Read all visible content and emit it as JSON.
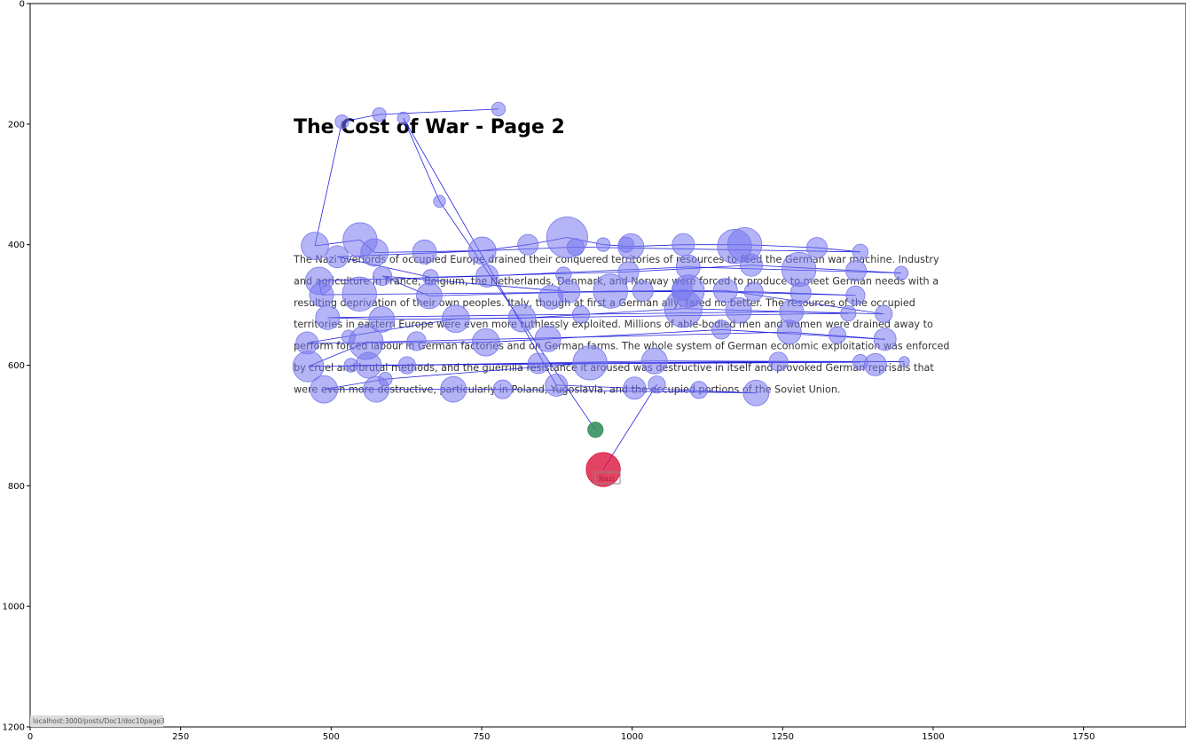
{
  "page": {
    "title": "The Cost of War - Page 2",
    "paragraph_lines": [
      "The Nazi overlords of occupied Europe drained their conquered territories of resources to feed the German war machine. Industry",
      "and agriculture in France, Belgium, the Netherlands, Denmark, and Norway were forced to produce to meet German needs with a",
      "resulting deprivation of their own peoples. Italy, though at first a German ally, fared no better. The resources of the occupied",
      "territories in eastern Europe were even more ruthlessly exploited. Millions of able-bodied men and women were drained away to",
      "perform forced labour in German factories and on German farms. The whole system of German economic exploitation was enforced",
      "by cruel and brutal methods, and the guerrilla resistance it aroused was destructive in itself and provoked German reprisals that",
      "were even more destructive, particularly in Poland, Yugoslavia, and the occupied portions of the Soviet Union."
    ],
    "status_url": "localhost:3000/posts/Doc1/doc10page3",
    "word_label": "Nazi"
  },
  "chart_data": {
    "type": "scatter",
    "title": "",
    "xlabel": "",
    "ylabel": "",
    "xlim": [
      0,
      1920
    ],
    "ylim": [
      1200,
      0
    ],
    "x_ticks": [
      0,
      250,
      500,
      750,
      1000,
      1250,
      1500,
      1750
    ],
    "y_ticks": [
      0,
      200,
      400,
      600,
      800,
      1000,
      1200
    ],
    "grid": false,
    "colors": {
      "fixation": "#7777ee",
      "path": "#2222dd",
      "start": "#2e8b57",
      "end": "#dc143c"
    },
    "fixations": [
      {
        "x": 778,
        "y": 175,
        "d": 8
      },
      {
        "x": 580,
        "y": 184,
        "d": 8
      },
      {
        "x": 620,
        "y": 190,
        "d": 7
      },
      {
        "x": 518,
        "y": 196,
        "d": 8
      },
      {
        "x": 473,
        "y": 402,
        "d": 16
      },
      {
        "x": 548,
        "y": 392,
        "d": 20
      },
      {
        "x": 510,
        "y": 420,
        "d": 13
      },
      {
        "x": 572,
        "y": 413,
        "d": 16
      },
      {
        "x": 655,
        "y": 412,
        "d": 14
      },
      {
        "x": 751,
        "y": 410,
        "d": 16
      },
      {
        "x": 827,
        "y": 400,
        "d": 12
      },
      {
        "x": 892,
        "y": 388,
        "d": 24
      },
      {
        "x": 906,
        "y": 404,
        "d": 10
      },
      {
        "x": 952,
        "y": 400,
        "d": 8
      },
      {
        "x": 990,
        "y": 400,
        "d": 9
      },
      {
        "x": 998,
        "y": 403,
        "d": 15
      },
      {
        "x": 1085,
        "y": 400,
        "d": 13
      },
      {
        "x": 1170,
        "y": 403,
        "d": 20
      },
      {
        "x": 1187,
        "y": 400,
        "d": 20
      },
      {
        "x": 1307,
        "y": 405,
        "d": 12
      },
      {
        "x": 1379,
        "y": 412,
        "d": 9
      },
      {
        "x": 1447,
        "y": 447,
        "d": 8
      },
      {
        "x": 1372,
        "y": 443,
        "d": 12
      },
      {
        "x": 1277,
        "y": 441,
        "d": 20
      },
      {
        "x": 1198,
        "y": 434,
        "d": 13
      },
      {
        "x": 1093,
        "y": 437,
        "d": 14
      },
      {
        "x": 994,
        "y": 445,
        "d": 12
      },
      {
        "x": 886,
        "y": 450,
        "d": 9
      },
      {
        "x": 759,
        "y": 452,
        "d": 13
      },
      {
        "x": 665,
        "y": 454,
        "d": 9
      },
      {
        "x": 585,
        "y": 452,
        "d": 11
      },
      {
        "x": 480,
        "y": 460,
        "d": 16
      },
      {
        "x": 484,
        "y": 483,
        "d": 14
      },
      {
        "x": 547,
        "y": 482,
        "d": 20
      },
      {
        "x": 663,
        "y": 485,
        "d": 15
      },
      {
        "x": 865,
        "y": 487,
        "d": 14
      },
      {
        "x": 895,
        "y": 478,
        "d": 13
      },
      {
        "x": 964,
        "y": 477,
        "d": 20
      },
      {
        "x": 1018,
        "y": 477,
        "d": 12
      },
      {
        "x": 1083,
        "y": 475,
        "d": 12
      },
      {
        "x": 1093,
        "y": 477,
        "d": 19
      },
      {
        "x": 1155,
        "y": 476,
        "d": 14
      },
      {
        "x": 1202,
        "y": 478,
        "d": 11
      },
      {
        "x": 1280,
        "y": 480,
        "d": 12
      },
      {
        "x": 1371,
        "y": 484,
        "d": 11
      },
      {
        "x": 1418,
        "y": 515,
        "d": 10
      },
      {
        "x": 1359,
        "y": 514,
        "d": 9
      },
      {
        "x": 1265,
        "y": 511,
        "d": 14
      },
      {
        "x": 1177,
        "y": 509,
        "d": 15
      },
      {
        "x": 1085,
        "y": 506,
        "d": 22
      },
      {
        "x": 915,
        "y": 516,
        "d": 10
      },
      {
        "x": 817,
        "y": 522,
        "d": 16
      },
      {
        "x": 707,
        "y": 523,
        "d": 16
      },
      {
        "x": 584,
        "y": 524,
        "d": 15
      },
      {
        "x": 494,
        "y": 521,
        "d": 14
      },
      {
        "x": 460,
        "y": 563,
        "d": 13
      },
      {
        "x": 529,
        "y": 553,
        "d": 8
      },
      {
        "x": 558,
        "y": 562,
        "d": 20
      },
      {
        "x": 642,
        "y": 560,
        "d": 11
      },
      {
        "x": 757,
        "y": 562,
        "d": 16
      },
      {
        "x": 860,
        "y": 556,
        "d": 15
      },
      {
        "x": 1148,
        "y": 541,
        "d": 11
      },
      {
        "x": 1261,
        "y": 545,
        "d": 14
      },
      {
        "x": 1341,
        "y": 550,
        "d": 10
      },
      {
        "x": 1420,
        "y": 557,
        "d": 13
      },
      {
        "x": 1452,
        "y": 594,
        "d": 6
      },
      {
        "x": 1404,
        "y": 599,
        "d": 13
      },
      {
        "x": 1379,
        "y": 595,
        "d": 9
      },
      {
        "x": 1243,
        "y": 594,
        "d": 11
      },
      {
        "x": 1037,
        "y": 593,
        "d": 15
      },
      {
        "x": 930,
        "y": 596,
        "d": 20
      },
      {
        "x": 844,
        "y": 597,
        "d": 12
      },
      {
        "x": 626,
        "y": 600,
        "d": 10
      },
      {
        "x": 562,
        "y": 600,
        "d": 15
      },
      {
        "x": 533,
        "y": 600,
        "d": 8
      },
      {
        "x": 462,
        "y": 602,
        "d": 18
      },
      {
        "x": 590,
        "y": 623,
        "d": 8
      },
      {
        "x": 488,
        "y": 640,
        "d": 16
      },
      {
        "x": 575,
        "y": 640,
        "d": 15
      },
      {
        "x": 703,
        "y": 640,
        "d": 15
      },
      {
        "x": 785,
        "y": 640,
        "d": 11
      },
      {
        "x": 874,
        "y": 633,
        "d": 13
      },
      {
        "x": 1004,
        "y": 638,
        "d": 13
      },
      {
        "x": 1041,
        "y": 632,
        "d": 10
      },
      {
        "x": 1111,
        "y": 641,
        "d": 10
      },
      {
        "x": 1206,
        "y": 646,
        "d": 15
      },
      {
        "x": 680,
        "y": 328,
        "d": 7
      },
      {
        "x": 939,
        "y": 707,
        "d": 9,
        "kind": "start"
      },
      {
        "x": 952,
        "y": 773,
        "d": 20,
        "kind": "end"
      }
    ],
    "path": [
      [
        778,
        175
      ],
      [
        580,
        184
      ],
      [
        518,
        196
      ],
      [
        473,
        402
      ],
      [
        548,
        392
      ],
      [
        572,
        413
      ],
      [
        751,
        410
      ],
      [
        827,
        400
      ],
      [
        892,
        388
      ],
      [
        952,
        400
      ],
      [
        998,
        403
      ],
      [
        1085,
        400
      ],
      [
        1187,
        400
      ],
      [
        1307,
        405
      ],
      [
        1379,
        412
      ],
      [
        906,
        404
      ],
      [
        510,
        420
      ],
      [
        665,
        454
      ],
      [
        994,
        445
      ],
      [
        1198,
        434
      ],
      [
        1447,
        447
      ],
      [
        1093,
        437
      ],
      [
        759,
        452
      ],
      [
        480,
        460
      ],
      [
        484,
        483
      ],
      [
        1093,
        477
      ],
      [
        1371,
        484
      ],
      [
        1202,
        478
      ],
      [
        895,
        478
      ],
      [
        585,
        452
      ],
      [
        663,
        485
      ],
      [
        964,
        477
      ],
      [
        1155,
        476
      ],
      [
        1418,
        515
      ],
      [
        1265,
        511
      ],
      [
        494,
        521
      ],
      [
        584,
        524
      ],
      [
        817,
        522
      ],
      [
        1085,
        506
      ],
      [
        1359,
        514
      ],
      [
        707,
        523
      ],
      [
        460,
        563
      ],
      [
        757,
        562
      ],
      [
        1148,
        541
      ],
      [
        1420,
        557
      ],
      [
        1261,
        545
      ],
      [
        558,
        562
      ],
      [
        462,
        602
      ],
      [
        844,
        597
      ],
      [
        1243,
        594
      ],
      [
        1452,
        594
      ],
      [
        1037,
        593
      ],
      [
        626,
        600
      ],
      [
        533,
        600
      ],
      [
        1379,
        595
      ],
      [
        930,
        596
      ],
      [
        590,
        623
      ],
      [
        488,
        640
      ],
      [
        785,
        640
      ],
      [
        1206,
        646
      ],
      [
        874,
        633
      ],
      [
        620,
        190
      ],
      [
        680,
        328
      ],
      [
        939,
        707
      ]
    ],
    "end_path": [
      [
        1041,
        632
      ],
      [
        952,
        773
      ]
    ]
  }
}
